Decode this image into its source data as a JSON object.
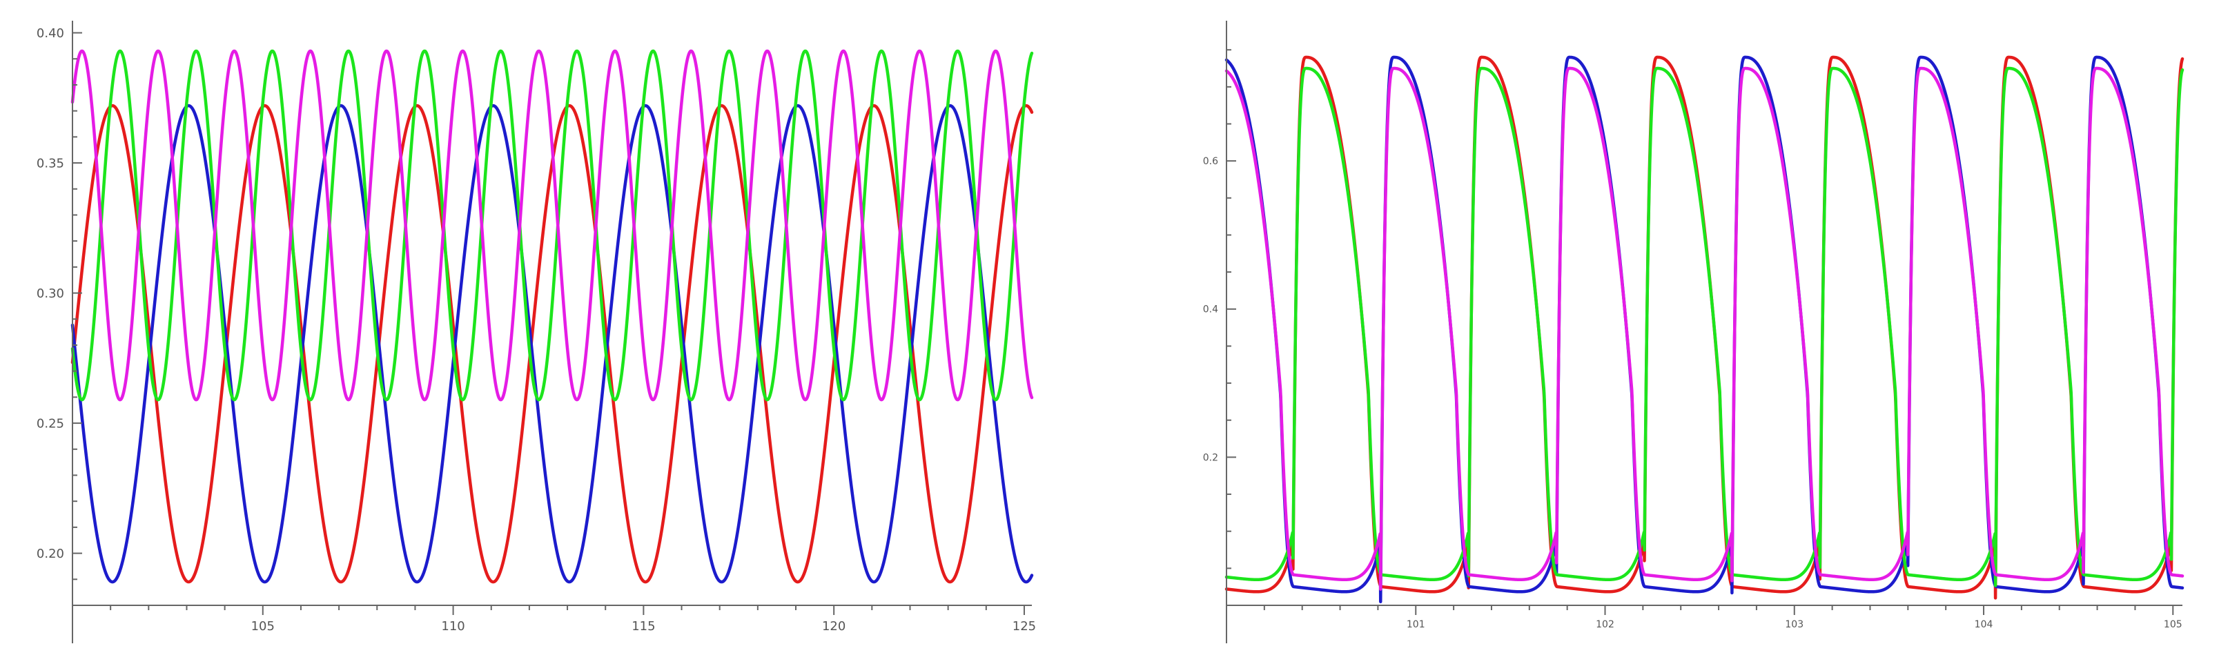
{
  "chart_data": [
    {
      "type": "line",
      "title": "",
      "xlabel": "",
      "ylabel": "",
      "xlim": [
        100,
        125.2
      ],
      "ylim": [
        0.18,
        0.402
      ],
      "x_ticks": [
        105,
        110,
        115,
        120,
        125
      ],
      "x_tick_labels": [
        "105",
        "110",
        "115",
        "120",
        "125"
      ],
      "y_ticks": [
        0.2,
        0.25,
        0.3,
        0.35,
        0.4
      ],
      "y_tick_labels": [
        "0.20",
        "0.25",
        "0.30",
        "0.35",
        "0.40"
      ],
      "grid": false,
      "legend": "none",
      "series": [
        {
          "color": "#e51c1c",
          "period": 4.0,
          "min": 0.189,
          "max": 0.372,
          "peak_times": [
            101.05,
            105.05,
            109.05,
            113.05,
            117.05,
            121.05,
            125.05
          ]
        },
        {
          "color": "#1c1ccc",
          "period": 4.0,
          "min": 0.189,
          "max": 0.372,
          "peak_times": [
            103.05,
            107.05,
            111.05,
            115.05,
            119.05,
            123.05
          ]
        },
        {
          "color": "#1ce51c",
          "period": 2.0,
          "min": 0.259,
          "max": 0.393,
          "peak_times": [
            101.25,
            103.25,
            105.25,
            107.25,
            109.25,
            111.25,
            113.25,
            115.25,
            117.25,
            119.25,
            121.25,
            123.25,
            125.25
          ]
        },
        {
          "color": "#e51ce5",
          "period": 2.0,
          "min": 0.259,
          "max": 0.393,
          "peak_times": [
            100.25,
            102.25,
            104.25,
            106.25,
            108.25,
            110.25,
            112.25,
            114.25,
            116.25,
            118.25,
            120.25,
            122.25,
            124.25
          ]
        }
      ]
    },
    {
      "type": "line",
      "title": "",
      "xlabel": "",
      "ylabel": "",
      "xlim": [
        100,
        105.05
      ],
      "ylim": [
        0,
        0.78
      ],
      "x_ticks": [
        101,
        102,
        103,
        104,
        105
      ],
      "x_tick_labels": [
        "101",
        "102",
        "103",
        "104",
        "105"
      ],
      "y_ticks": [
        0.2,
        0.4,
        0.6
      ],
      "y_tick_labels": [
        "0.2",
        "0.4",
        "0.6"
      ],
      "grid": false,
      "legend": "none",
      "series": [
        {
          "color": "#e51c1c",
          "period": 0.928,
          "min": 0.003,
          "max": 0.74,
          "rise_times": [
            100.35,
            101.278,
            102.206,
            103.134,
            104.062,
            104.99
          ],
          "peak_times": [
            100.42,
            101.348,
            102.276,
            103.204,
            104.132
          ]
        },
        {
          "color": "#1c1ccc",
          "period": 0.928,
          "min": 0.003,
          "max": 0.74,
          "rise_times": [
            100.814,
            101.742,
            102.67,
            103.598,
            104.526
          ],
          "peak_times": [
            100.884,
            101.812,
            102.74,
            103.668,
            104.596
          ]
        },
        {
          "color": "#1ce51c",
          "period": 0.928,
          "min": 0.02,
          "max": 0.725,
          "rise_times": [
            100.35,
            101.278,
            102.206,
            103.134,
            104.062,
            104.99
          ],
          "peak_times": [
            100.42,
            101.348,
            102.276,
            103.204,
            104.132
          ]
        },
        {
          "color": "#e51ce5",
          "period": 0.928,
          "min": 0.02,
          "max": 0.725,
          "rise_times": [
            100.814,
            101.742,
            102.67,
            103.598,
            104.526
          ],
          "peak_times": [
            100.884,
            101.812,
            102.74,
            103.668,
            104.596
          ]
        }
      ]
    }
  ]
}
